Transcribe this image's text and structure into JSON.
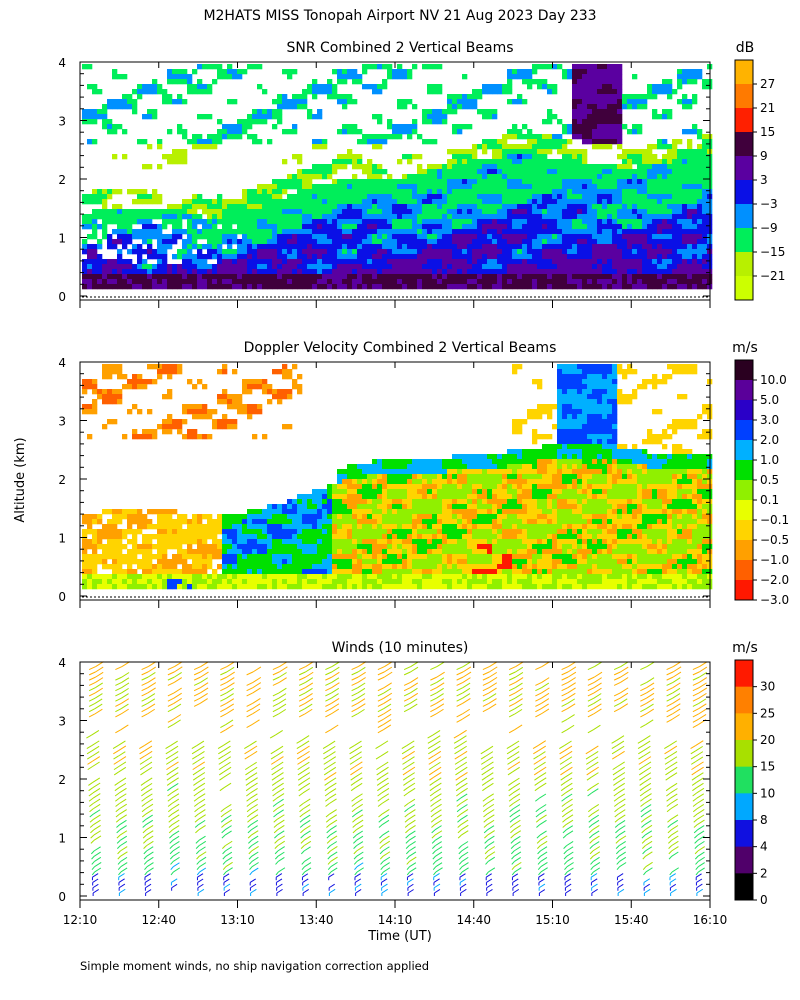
{
  "title": "M2HATS MISS Tonopah Airport NV  21 Aug 2023 Day 233",
  "footnote": "Simple moment winds, no ship navigation correction applied",
  "shared_ylabel": "Altitude (km)",
  "chart_data": [
    {
      "type": "heatmap",
      "title": "SNR Combined 2 Vertical Beams",
      "units": "dB",
      "xlabel": "",
      "ylabel": "Altitude (km)",
      "xlim": [
        "12:10",
        "16:10"
      ],
      "ylim": [
        0,
        4
      ],
      "y_ticks": [
        "0",
        "1",
        "2",
        "3",
        "4"
      ],
      "colorbar": {
        "labels": [
          "27",
          "21",
          "15",
          "9",
          "3",
          "−3",
          "−9",
          "−15",
          "−21"
        ],
        "colors": [
          "#ffb300",
          "#ff7a00",
          "#ff2000",
          "#40003c",
          "#5a00a0",
          "#0a10e6",
          "#0090ff",
          "#00ee5a",
          "#b8f000",
          "#ccff00"
        ]
      }
    },
    {
      "type": "heatmap",
      "title": "Doppler Velocity Combined 2 Vertical Beams",
      "units": "m/s",
      "xlabel": "",
      "ylabel": "Altitude (km)",
      "xlim": [
        "12:10",
        "16:10"
      ],
      "ylim": [
        0,
        4
      ],
      "y_ticks": [
        "0",
        "1",
        "2",
        "3",
        "4"
      ],
      "colorbar": {
        "labels": [
          "10.0",
          "5.0",
          "3.0",
          "2.0",
          "1.0",
          "0.5",
          "0.1",
          "−0.1",
          "−0.5",
          "−1.0",
          "−2.0",
          "−3.0"
        ],
        "colors": [
          "#2a0020",
          "#5a009a",
          "#2a00c8",
          "#0040ff",
          "#00b0ff",
          "#00e000",
          "#90f000",
          "#e8ff00",
          "#ffd400",
          "#ffa000",
          "#ff6000",
          "#ff1800"
        ]
      }
    },
    {
      "type": "wind_barbs",
      "title": "Winds (10 minutes)",
      "units": "m/s",
      "xlabel": "Time (UT)",
      "ylabel": "Altitude (km)",
      "x_ticks": [
        "12:10",
        "12:40",
        "13:10",
        "13:40",
        "14:10",
        "14:40",
        "15:10",
        "15:40",
        "16:10"
      ],
      "ylim": [
        0,
        4
      ],
      "y_ticks": [
        "0",
        "1",
        "2",
        "3",
        "4"
      ],
      "colorbar": {
        "labels": [
          "30",
          "25",
          "20",
          "15",
          "10",
          "8",
          "4",
          "2",
          "0"
        ],
        "colors": [
          "#ff1a00",
          "#ff8000",
          "#ffb000",
          "#a8e000",
          "#20e060",
          "#00a8ff",
          "#1010e0",
          "#50006a",
          "#000000"
        ]
      },
      "profile_times": [
        "12:15",
        "12:25",
        "12:35",
        "12:45",
        "12:55",
        "13:05",
        "13:15",
        "13:25",
        "13:35",
        "13:45",
        "13:55",
        "14:05",
        "14:15",
        "14:25",
        "14:35",
        "14:45",
        "14:55",
        "15:05",
        "15:15",
        "15:25",
        "15:35",
        "15:45",
        "15:55",
        "16:05"
      ]
    }
  ]
}
